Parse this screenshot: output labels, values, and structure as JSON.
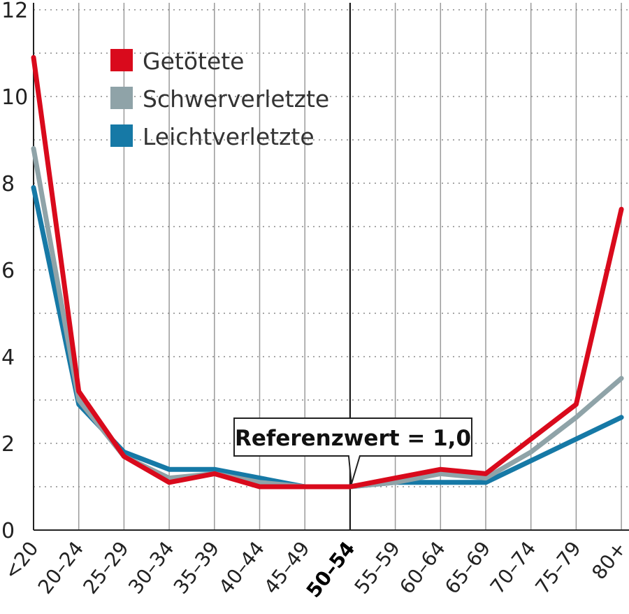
{
  "chart_data": {
    "type": "line",
    "categories": [
      "<20",
      "20–24",
      "25–29",
      "30–34",
      "35–39",
      "40–44",
      "45–49",
      "50–54",
      "55–59",
      "60–64",
      "65–69",
      "70–74",
      "75–79",
      "80+"
    ],
    "reference_category_index": 7,
    "series": [
      {
        "name": "Getötete",
        "color": "#d90a1c",
        "values": [
          10.9,
          3.2,
          1.7,
          1.1,
          1.3,
          1.0,
          1.0,
          1.0,
          1.2,
          1.4,
          1.3,
          2.1,
          2.9,
          7.4
        ]
      },
      {
        "name": "Schwerverletzte",
        "color": "#8fa3a8",
        "values": [
          8.8,
          3.0,
          1.7,
          1.2,
          1.3,
          1.1,
          1.0,
          1.0,
          1.1,
          1.3,
          1.2,
          1.8,
          2.6,
          3.5
        ]
      },
      {
        "name": "Leichtverletzte",
        "color": "#1679a6",
        "values": [
          7.9,
          2.9,
          1.8,
          1.4,
          1.4,
          1.2,
          1.0,
          1.0,
          1.1,
          1.1,
          1.1,
          1.6,
          2.1,
          2.6
        ]
      }
    ],
    "ylim": [
      0,
      12
    ],
    "yticks": [
      0,
      2,
      4,
      6,
      8,
      10,
      12
    ],
    "yticks_minor": [
      1,
      3,
      5,
      7,
      9,
      11
    ],
    "annotation": {
      "text": "Referenzwert = 1,0",
      "category_index": 7,
      "value": 1.0
    },
    "legend": {
      "position": "top-left"
    },
    "grid": true
  }
}
